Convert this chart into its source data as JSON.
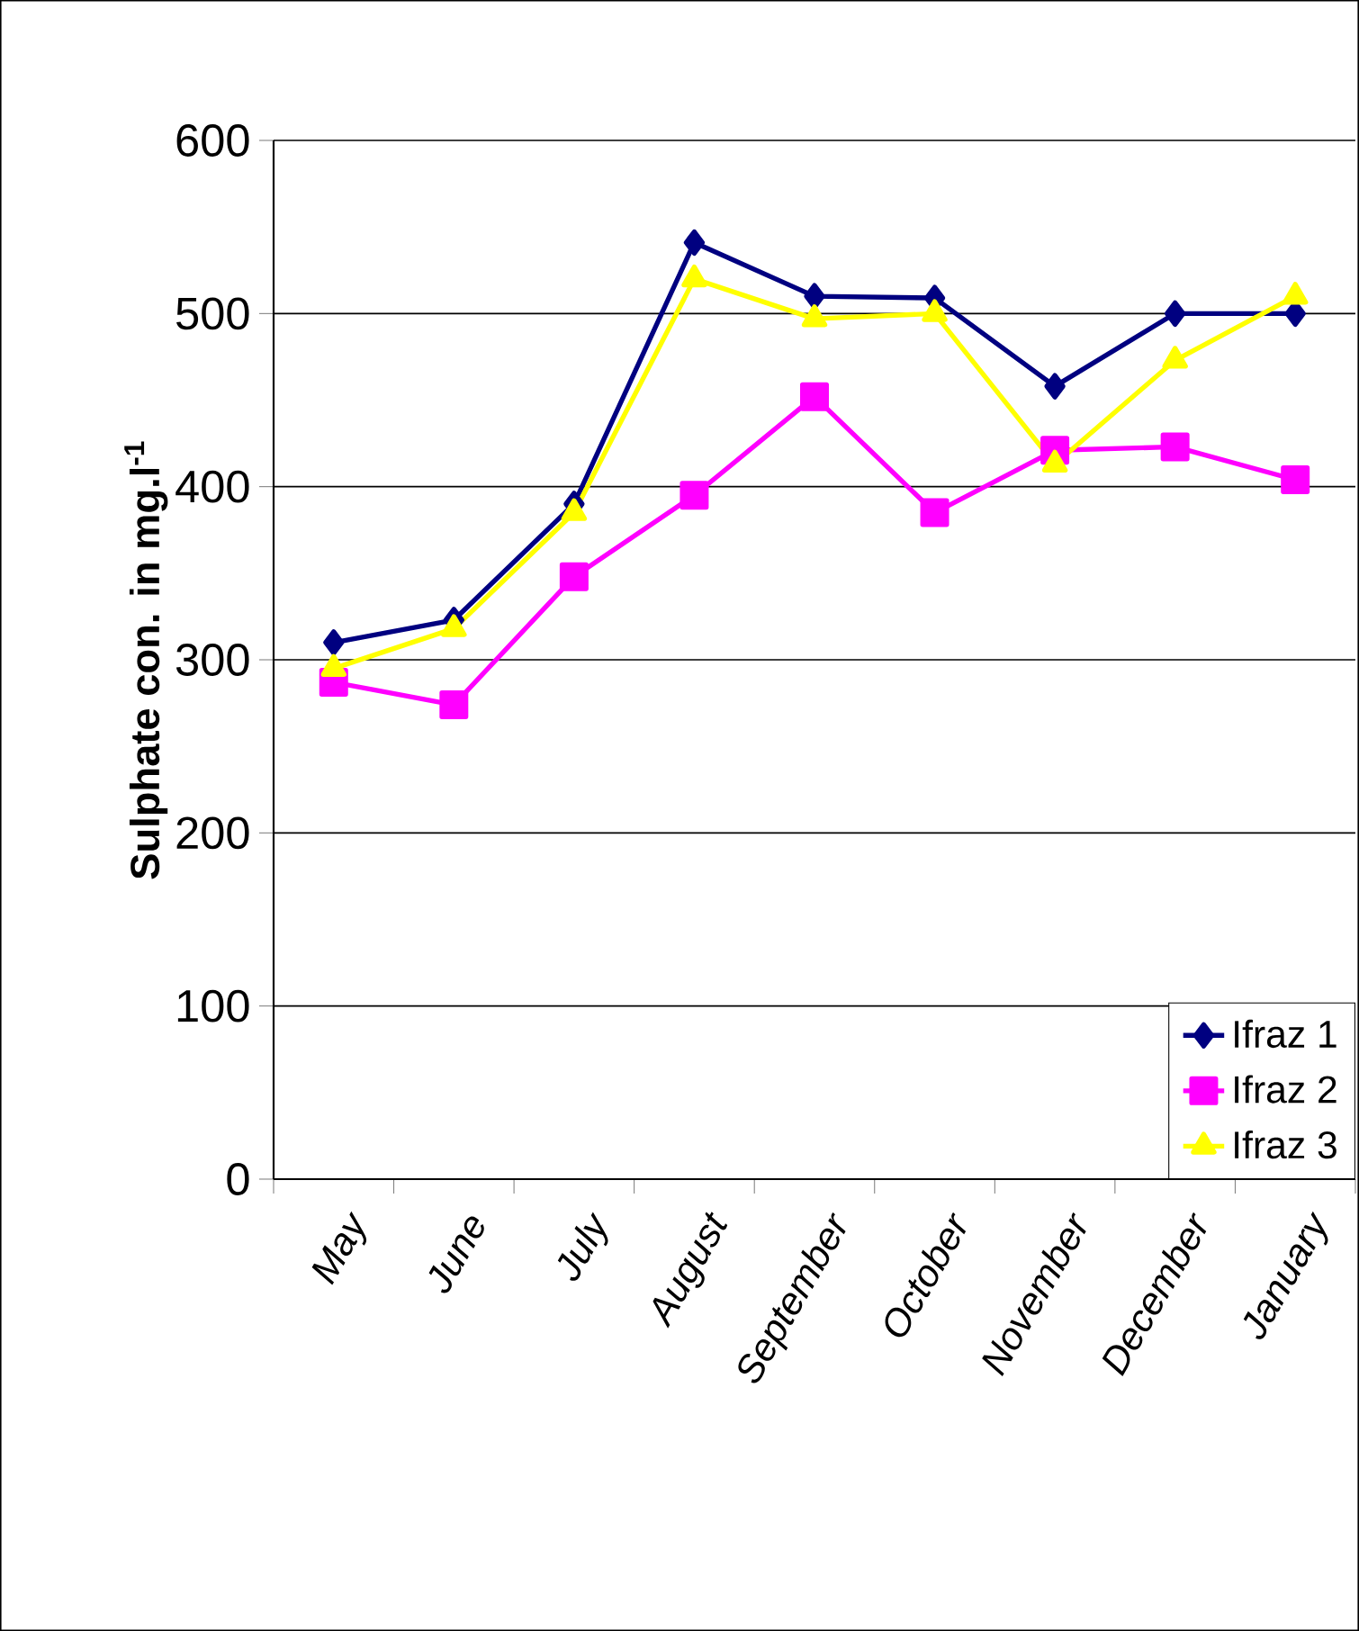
{
  "chart_data": {
    "type": "line",
    "ylabel": "**Sulphate con. in mg.l$^{-1}$**",
    "categories": [
      "May",
      "June",
      "July",
      "August",
      "September",
      "October",
      "November",
      "December",
      "January"
    ],
    "series": [
      {
        "name": "Ifraz 1",
        "color": "#000080",
        "marker": "diamond",
        "values": [
          310,
          323,
          390,
          541,
          510,
          509,
          458,
          500,
          500
        ]
      },
      {
        "name": "Ifraz 2",
        "color": "#ff00ff",
        "marker": "square",
        "values": [
          287,
          274,
          348,
          395,
          452,
          385,
          421,
          423,
          404
        ]
      },
      {
        "name": "Ifraz 3",
        "color": "#ffff00",
        "marker": "triangle",
        "values": [
          295,
          318,
          385,
          520,
          497,
          500,
          413,
          473,
          510
        ]
      }
    ],
    "ylim": [
      0,
      600
    ],
    "yticks": [
      0,
      100,
      200,
      300,
      400,
      500,
      600
    ],
    "grid": "y",
    "legend": "bottom right",
    "line_style": "solid"
  }
}
